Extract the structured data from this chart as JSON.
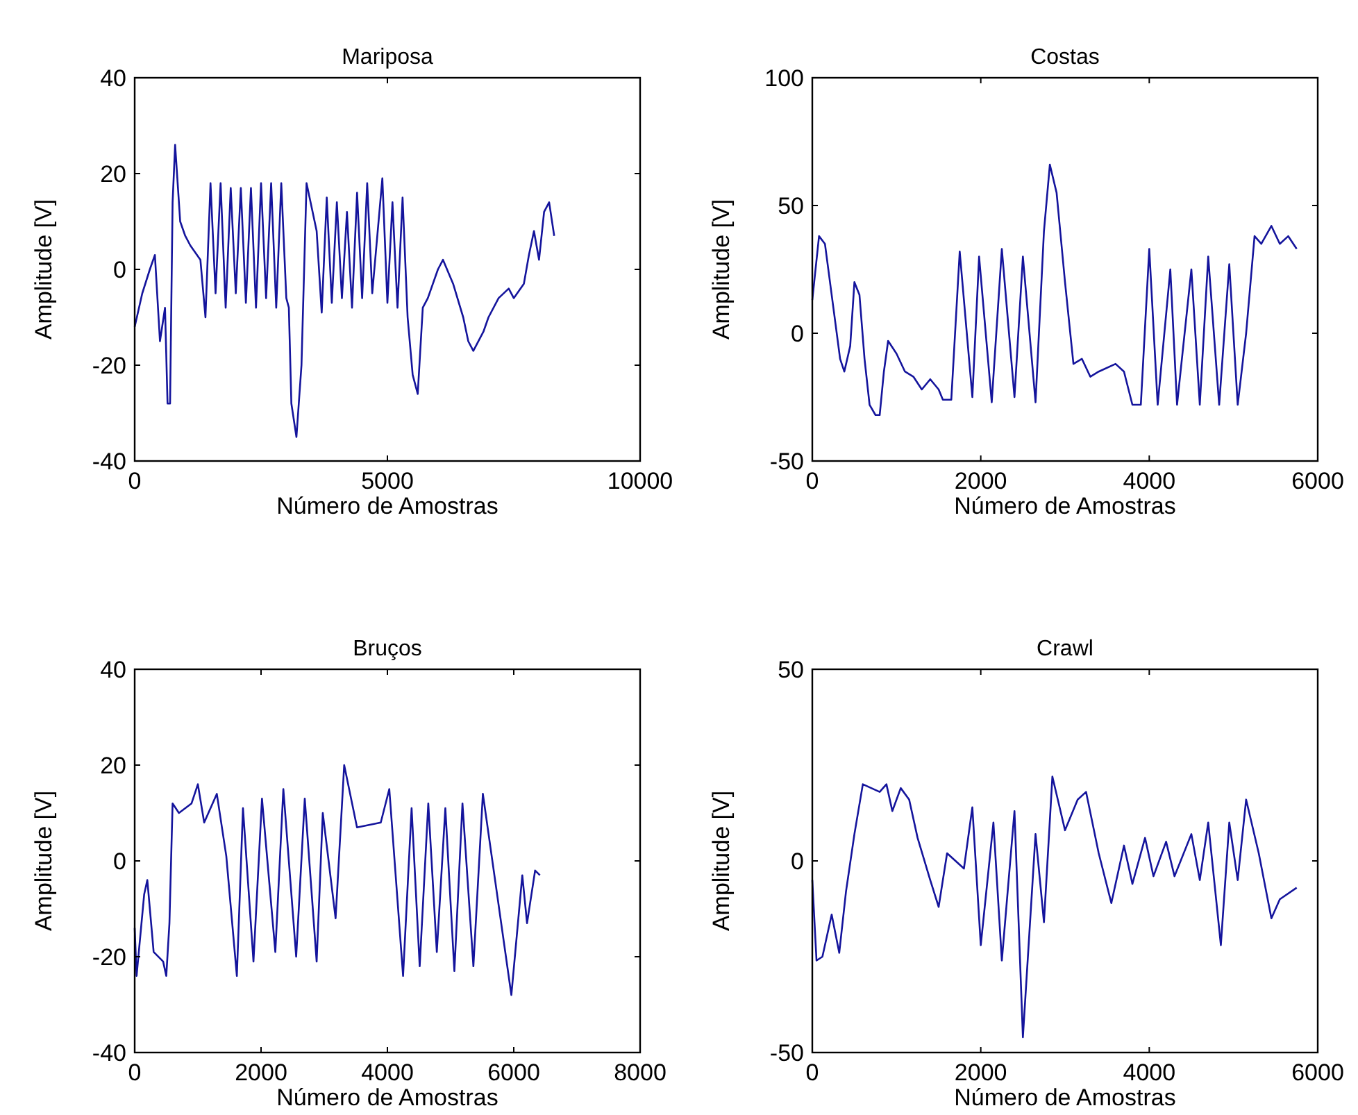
{
  "chart_data": [
    {
      "type": "line",
      "title": "Mariposa",
      "xlabel": "Número de Amostras",
      "ylabel": "Amplitude [V]",
      "xlim": [
        0,
        10000
      ],
      "ylim": [
        -40,
        40
      ],
      "xticks": [
        0,
        5000,
        10000
      ],
      "yticks": [
        -40,
        -20,
        0,
        20,
        40
      ],
      "series": [
        {
          "color": "#14149c",
          "x": [
            0,
            150,
            300,
            400,
            500,
            600,
            650,
            700,
            750,
            800,
            900,
            1000,
            1100,
            1300,
            1400,
            1500,
            1600,
            1700,
            1800,
            1900,
            2000,
            2100,
            2200,
            2300,
            2400,
            2500,
            2600,
            2700,
            2800,
            2900,
            3000,
            3050,
            3100,
            3200,
            3300,
            3400,
            3600,
            3700,
            3800,
            3900,
            4000,
            4100,
            4200,
            4300,
            4400,
            4500,
            4600,
            4700,
            4900,
            5000,
            5100,
            5200,
            5300,
            5400,
            5500,
            5600,
            5700,
            5800,
            6000,
            6100,
            6300,
            6500,
            6600,
            6700,
            6900,
            7000,
            7200,
            7400,
            7500,
            7700,
            7800,
            7900,
            8000,
            8100,
            8200,
            8300
          ],
          "values": [
            -12,
            -5,
            0,
            3,
            -15,
            -8,
            -28,
            -28,
            14,
            26,
            10,
            7,
            5,
            2,
            -10,
            18,
            -5,
            18,
            -8,
            17,
            -5,
            17,
            -7,
            17,
            -8,
            18,
            -6,
            18,
            -8,
            18,
            -6,
            -8,
            -28,
            -35,
            -20,
            18,
            8,
            -9,
            15,
            -7,
            14,
            -6,
            12,
            -8,
            16,
            -6,
            18,
            -5,
            19,
            -7,
            14,
            -8,
            15,
            -10,
            -22,
            -26,
            -8,
            -6,
            0,
            2,
            -3,
            -10,
            -15,
            -17,
            -13,
            -10,
            -6,
            -4,
            -6,
            -3,
            3,
            8,
            2,
            12,
            14,
            7
          ]
        }
      ]
    },
    {
      "type": "line",
      "title": "Costas",
      "xlabel": "Número de Amostras",
      "ylabel": "Amplitude [V]",
      "xlim": [
        0,
        6000
      ],
      "ylim": [
        -50,
        100
      ],
      "xticks": [
        0,
        2000,
        4000,
        6000
      ],
      "yticks": [
        -50,
        0,
        50,
        100
      ],
      "series": [
        {
          "color": "#14149c",
          "x": [
            0,
            80,
            150,
            250,
            330,
            380,
            450,
            500,
            560,
            620,
            680,
            750,
            800,
            850,
            900,
            1000,
            1100,
            1200,
            1300,
            1400,
            1500,
            1550,
            1650,
            1750,
            1900,
            1980,
            2130,
            2250,
            2400,
            2500,
            2650,
            2750,
            2820,
            2900,
            3000,
            3100,
            3200,
            3300,
            3400,
            3600,
            3700,
            3800,
            3900,
            4000,
            4100,
            4250,
            4330,
            4500,
            4600,
            4700,
            4830,
            4950,
            5050,
            5150,
            5250,
            5330,
            5450,
            5550,
            5650,
            5750
          ],
          "values": [
            13,
            38,
            35,
            10,
            -10,
            -15,
            -5,
            20,
            15,
            -10,
            -28,
            -32,
            -32,
            -15,
            -3,
            -8,
            -15,
            -17,
            -22,
            -18,
            -22,
            -26,
            -26,
            32,
            -25,
            30,
            -27,
            33,
            -25,
            30,
            -27,
            40,
            66,
            55,
            20,
            -12,
            -10,
            -17,
            -15,
            -12,
            -15,
            -28,
            -28,
            33,
            -28,
            25,
            -28,
            25,
            -28,
            30,
            -28,
            27,
            -28,
            0,
            38,
            35,
            42,
            35,
            38,
            33
          ]
        }
      ]
    },
    {
      "type": "line",
      "title": "Bruços",
      "xlabel": "Número de Amostras",
      "ylabel": "Amplitude [V]",
      "xlim": [
        0,
        8000
      ],
      "ylim": [
        -40,
        40
      ],
      "xticks": [
        0,
        2000,
        4000,
        6000,
        8000
      ],
      "yticks": [
        -40,
        -20,
        0,
        20,
        40
      ],
      "series": [
        {
          "color": "#14149c",
          "x": [
            0,
            30,
            150,
            200,
            300,
            450,
            500,
            550,
            600,
            700,
            900,
            1000,
            1100,
            1300,
            1450,
            1617,
            1714,
            1880,
            2015,
            2226,
            2353,
            2556,
            2692,
            2880,
            2977,
            3180,
            3316,
            3519,
            3895,
            4030,
            4248,
            4383,
            4511,
            4647,
            4782,
            4917,
            5060,
            5188,
            5361,
            5511,
            5962,
            6135,
            6210,
            6338,
            6414
          ],
          "values": [
            -14,
            -24,
            -7,
            -4,
            -19,
            -21,
            -24,
            -13,
            12,
            10,
            12,
            16,
            8,
            14,
            1,
            -24,
            11,
            -21,
            13,
            -19,
            15,
            -20,
            13,
            -21,
            10,
            -12,
            20,
            7,
            8,
            15,
            -24,
            11,
            -22,
            12,
            -19,
            11,
            -23,
            12,
            -22,
            14,
            -28,
            -3,
            -13,
            -2,
            -3
          ]
        }
      ]
    },
    {
      "type": "line",
      "title": "Crawl",
      "xlabel": "Número de Amostras",
      "ylabel": "Amplitude [V]",
      "xlim": [
        0,
        6000
      ],
      "ylim": [
        -50,
        50
      ],
      "xticks": [
        0,
        2000,
        4000,
        6000
      ],
      "yticks": [
        -50,
        0,
        50
      ],
      "series": [
        {
          "color": "#14149c",
          "x": [
            0,
            50,
            120,
            230,
            320,
            400,
            500,
            600,
            800,
            880,
            950,
            1050,
            1150,
            1250,
            1400,
            1500,
            1600,
            1800,
            1900,
            2000,
            2150,
            2250,
            2400,
            2500,
            2650,
            2750,
            2850,
            3000,
            3150,
            3250,
            3400,
            3550,
            3700,
            3800,
            3950,
            4050,
            4200,
            4300,
            4500,
            4600,
            4700,
            4850,
            4950,
            5050,
            5150,
            5300,
            5450,
            5550,
            5750
          ],
          "values": [
            -5,
            -26,
            -25,
            -14,
            -24,
            -8,
            7,
            20,
            18,
            20,
            13,
            19,
            16,
            6,
            -5,
            -12,
            2,
            -2,
            14,
            -22,
            10,
            -26,
            13,
            -46,
            7,
            -16,
            22,
            8,
            16,
            18,
            2,
            -11,
            4,
            -6,
            6,
            -4,
            5,
            -4,
            7,
            -5,
            10,
            -22,
            10,
            -5,
            16,
            2,
            -15,
            -10,
            -7
          ]
        }
      ]
    }
  ]
}
